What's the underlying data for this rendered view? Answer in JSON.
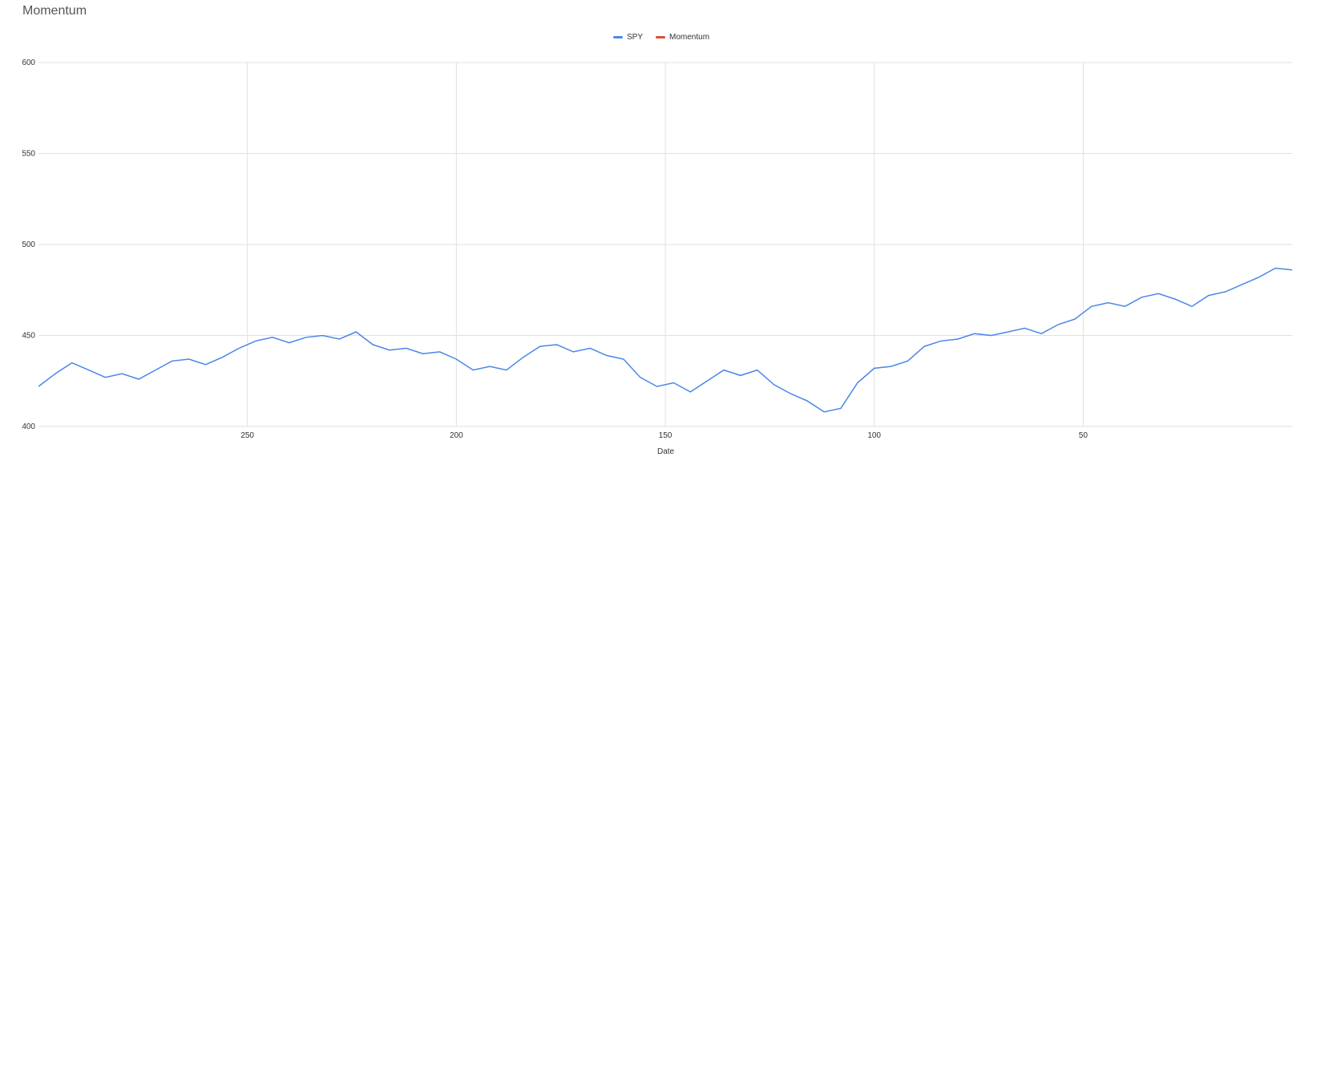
{
  "colors": {
    "spy": "#4a86e8",
    "momentum": "#e04a3c",
    "buy": "#4a86e8",
    "sell": "#e04a3c",
    "grid": "#e0e0e0",
    "axis": "#333333"
  },
  "chart_data": [
    {
      "id": "momentum",
      "type": "line",
      "title": "Momentum",
      "xlabel": "Date",
      "ylabel": "",
      "xlim": [
        300,
        0
      ],
      "ylim": [
        400,
        600
      ],
      "yticks": [
        "400",
        "450",
        "500",
        "550",
        "600"
      ],
      "xticks": [
        "250",
        "200",
        "150",
        "100",
        "50"
      ],
      "legend": "top",
      "grid": true,
      "series": [
        {
          "name": "SPY",
          "color": "#4a86e8",
          "points": [
            [
              300,
              422
            ],
            [
              296,
              429
            ],
            [
              292,
              435
            ],
            [
              288,
              431
            ],
            [
              284,
              427
            ],
            [
              280,
              429
            ],
            [
              276,
              426
            ],
            [
              272,
              431
            ],
            [
              268,
              436
            ],
            [
              264,
              437
            ],
            [
              260,
              434
            ],
            [
              256,
              438
            ],
            [
              252,
              443
            ],
            [
              248,
              447
            ],
            [
              244,
              449
            ],
            [
              240,
              446
            ],
            [
              236,
              449
            ],
            [
              232,
              450
            ],
            [
              228,
              448
            ],
            [
              224,
              452
            ],
            [
              220,
              445
            ],
            [
              216,
              442
            ],
            [
              212,
              443
            ],
            [
              208,
              440
            ],
            [
              204,
              441
            ],
            [
              200,
              437
            ],
            [
              196,
              431
            ],
            [
              192,
              433
            ],
            [
              188,
              431
            ],
            [
              184,
              438
            ],
            [
              180,
              444
            ],
            [
              176,
              445
            ],
            [
              172,
              441
            ],
            [
              168,
              443
            ],
            [
              164,
              439
            ],
            [
              160,
              437
            ],
            [
              156,
              427
            ],
            [
              152,
              422
            ],
            [
              148,
              424
            ],
            [
              144,
              419
            ],
            [
              140,
              425
            ],
            [
              136,
              431
            ],
            [
              132,
              428
            ],
            [
              128,
              431
            ],
            [
              124,
              423
            ],
            [
              120,
              418
            ],
            [
              116,
              414
            ],
            [
              112,
              408
            ],
            [
              108,
              410
            ],
            [
              104,
              424
            ],
            [
              100,
              432
            ],
            [
              96,
              433
            ],
            [
              92,
              436
            ],
            [
              88,
              444
            ],
            [
              84,
              447
            ],
            [
              80,
              448
            ],
            [
              76,
              451
            ],
            [
              72,
              450
            ],
            [
              68,
              452
            ],
            [
              64,
              454
            ],
            [
              60,
              451
            ],
            [
              56,
              456
            ],
            [
              52,
              459
            ],
            [
              48,
              466
            ],
            [
              44,
              468
            ],
            [
              40,
              466
            ],
            [
              36,
              471
            ],
            [
              32,
              473
            ],
            [
              28,
              470
            ],
            [
              24,
              466
            ],
            [
              20,
              472
            ],
            [
              16,
              474
            ],
            [
              12,
              478
            ],
            [
              8,
              482
            ],
            [
              4,
              487
            ],
            [
              0,
              486
            ]
          ]
        }
      ]
    }
  ]
}
